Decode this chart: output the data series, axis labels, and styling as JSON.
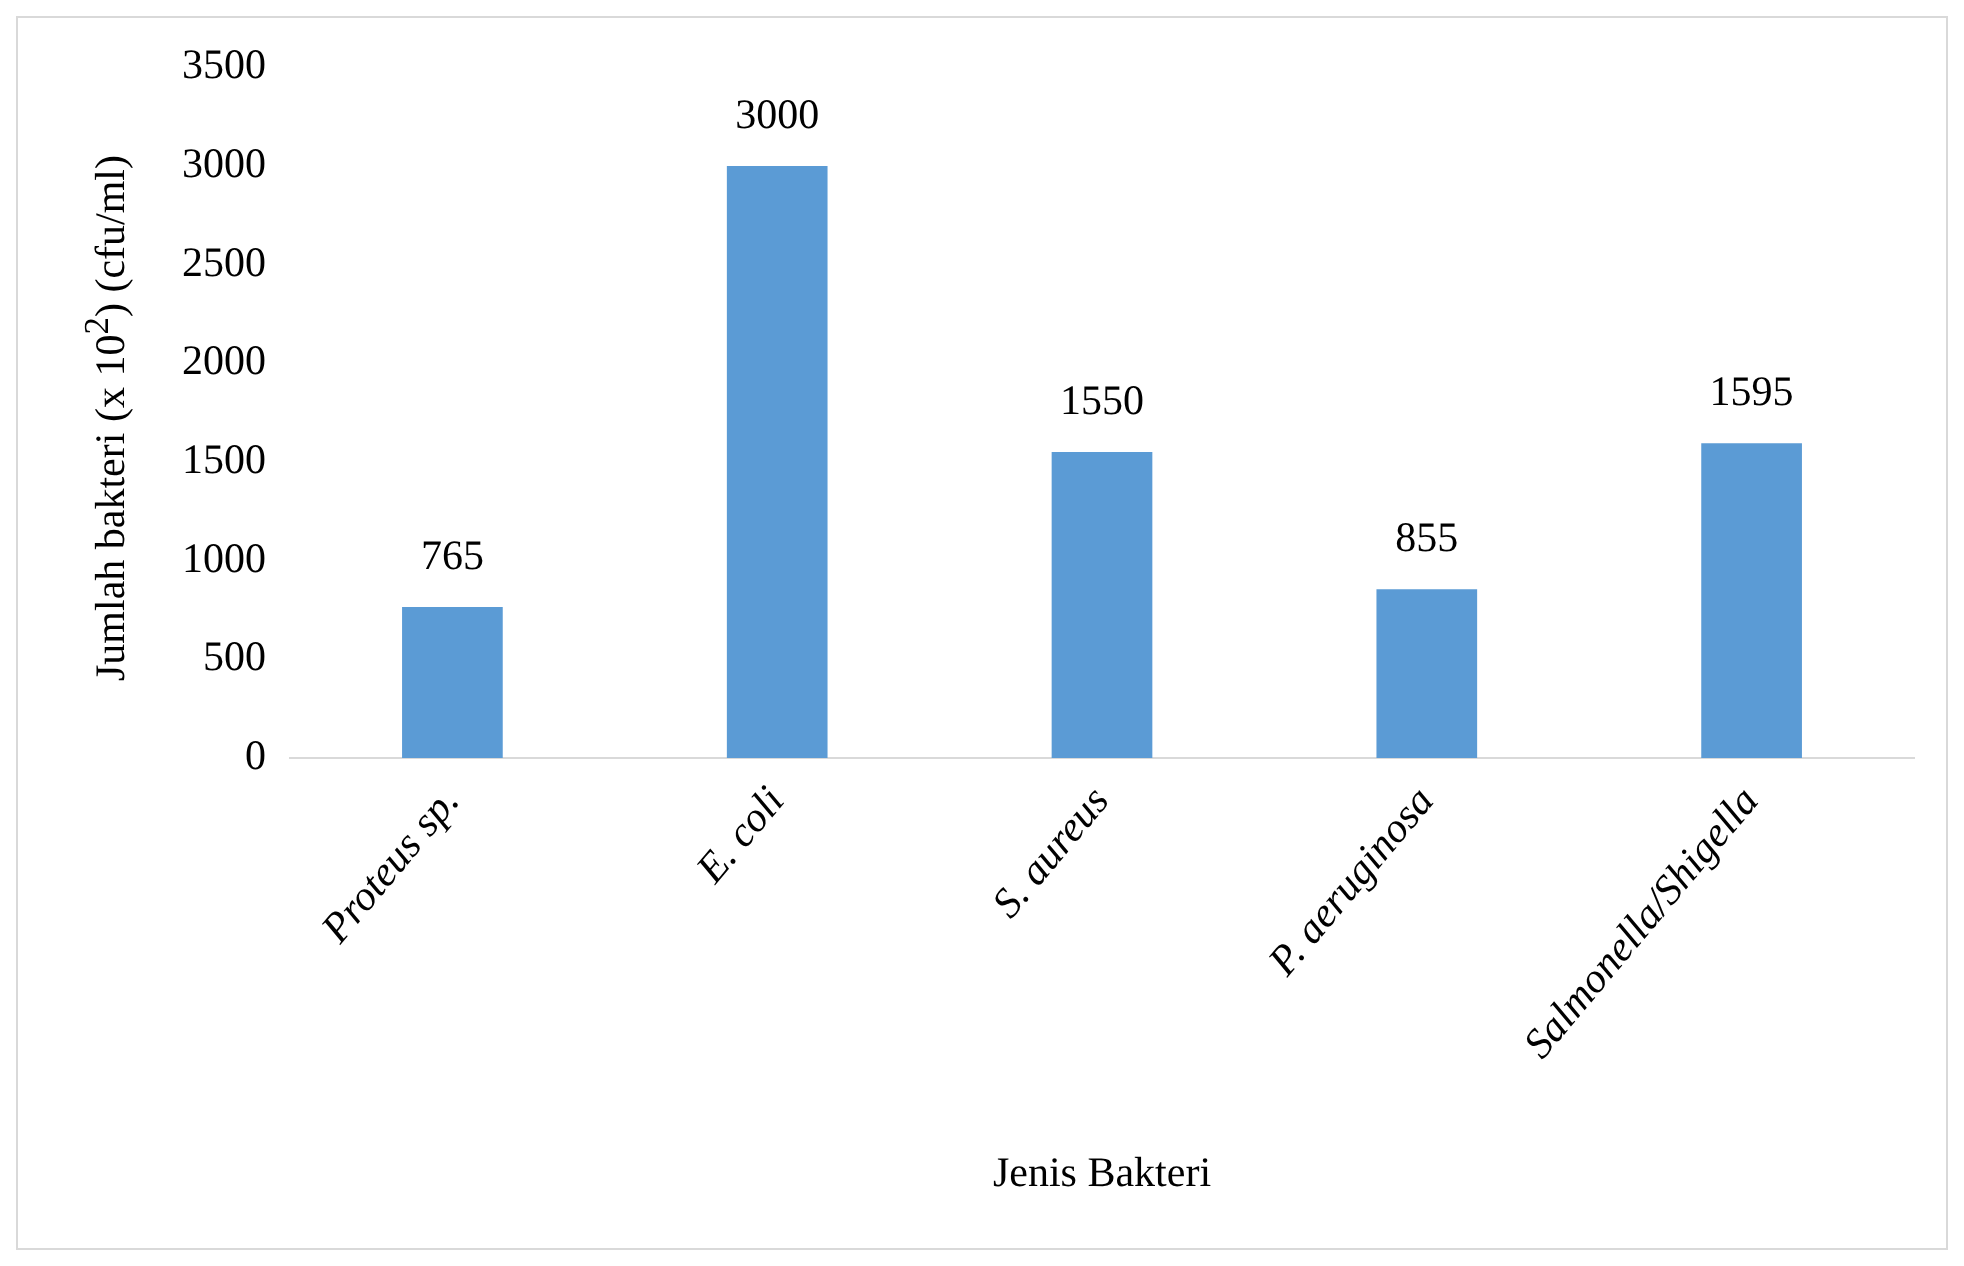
{
  "chart_data": {
    "type": "bar",
    "ylabel": "Jumlah bakteri (x 10$^{2}$) (cfu/ml)",
    "xlabel": "Jenis Bakteri",
    "categories": [
      "Proteus sp.",
      "E. coli",
      "S. aureus",
      "P. aeruginosa",
      "Salmonella/Shigella"
    ],
    "values": [
      765,
      3000,
      1550,
      855,
      1595
    ],
    "color": "#5b9bd5",
    "ylim": [
      0,
      3500
    ],
    "yticks": [
      0,
      500,
      1000,
      1500,
      2000,
      2500,
      3000,
      3500
    ],
    "grid": false,
    "legend": false,
    "data_labels": true
  }
}
